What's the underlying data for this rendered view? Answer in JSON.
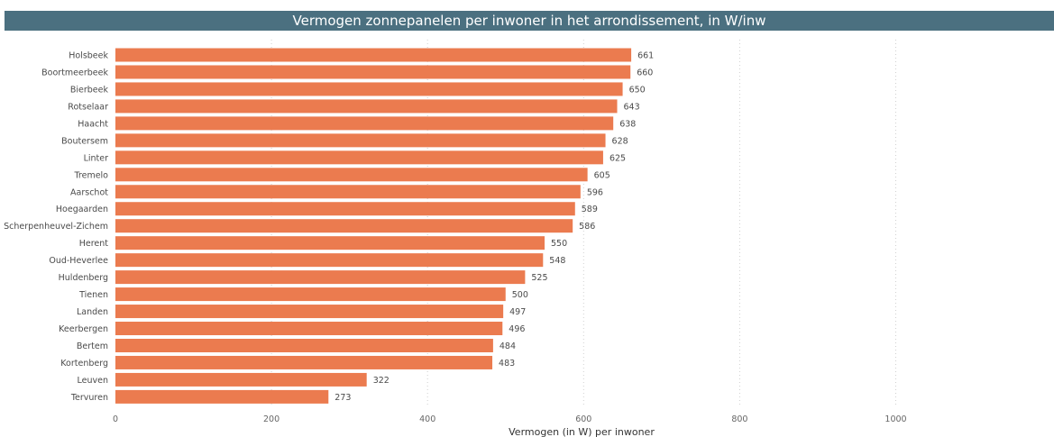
{
  "title": "Vermogen zonnepanelen per inwoner in het arrondissement, in W/inw",
  "colors": {
    "bar": "#eb7b4f",
    "title_bg": "#4b7080",
    "grid": "#d0d0d0"
  },
  "chart_data": {
    "type": "bar",
    "orientation": "horizontal",
    "title": "Vermogen zonnepanelen per inwoner in het arrondissement, in W/inw",
    "xlabel": "Vermogen (in W) per inwoner",
    "ylabel": "",
    "xlim": [
      0,
      1200
    ],
    "xticks": [
      0,
      200,
      400,
      600,
      800,
      1000
    ],
    "grid": "vertical dotted",
    "categories": [
      "Holsbeek",
      "Boortmeerbeek",
      "Bierbeek",
      "Rotselaar",
      "Haacht",
      "Boutersem",
      "Linter",
      "Tremelo",
      "Aarschot",
      "Hoegaarden",
      "Scherpenheuvel-Zichem",
      "Herent",
      "Oud-Heverlee",
      "Huldenberg",
      "Tienen",
      "Landen",
      "Keerbergen",
      "Bertem",
      "Kortenberg",
      "Leuven",
      "Tervuren"
    ],
    "values": [
      661,
      660,
      650,
      643,
      638,
      628,
      625,
      605,
      596,
      589,
      586,
      550,
      548,
      525,
      500,
      497,
      496,
      484,
      483,
      322,
      273
    ]
  }
}
